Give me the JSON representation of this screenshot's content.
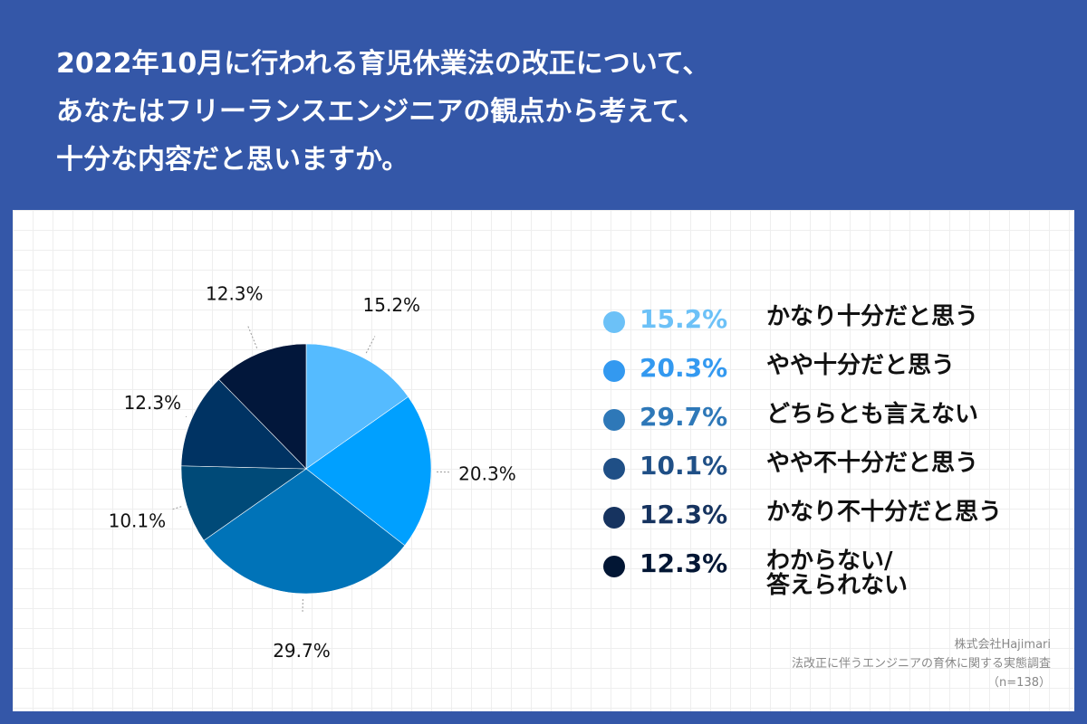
{
  "title_lines": [
    "2022年10月に行われる育児休業法の改正について、",
    "あなたはフリーランスエンジニアの観点から考えて、",
    "十分な内容だと思いますか。"
  ],
  "chart_data": {
    "type": "pie",
    "slices": [
      {
        "label": "かなり十分だと思う",
        "value": 15.2,
        "display": "15.2%",
        "color": "#55bbff"
      },
      {
        "label": "やや十分だと思う",
        "value": 20.3,
        "display": "20.3%",
        "color": "#00a0ff"
      },
      {
        "label": "どちらとも言えない",
        "value": 29.7,
        "display": "29.7%",
        "color": "#0073b8"
      },
      {
        "label": "やや不十分だと思う",
        "value": 10.1,
        "display": "10.1%",
        "color": "#004a78"
      },
      {
        "label": "かなり不十分だと思う",
        "value": 12.3,
        "display": "12.3%",
        "color": "#003363"
      },
      {
        "label": "わからない/\n答えられない",
        "value": 12.3,
        "display": "12.3%",
        "color": "#02173b"
      }
    ],
    "legend_colors": [
      "#6cc1f7",
      "#3399f0",
      "#2e78b8",
      "#1f4f86",
      "#16335f",
      "#021634"
    ],
    "legend_placement": "right"
  },
  "source": {
    "company": "株式会社Hajimari",
    "survey": "法改正に伴うエンジニアの育休に関する実態調査",
    "sample": "（n=138）"
  }
}
